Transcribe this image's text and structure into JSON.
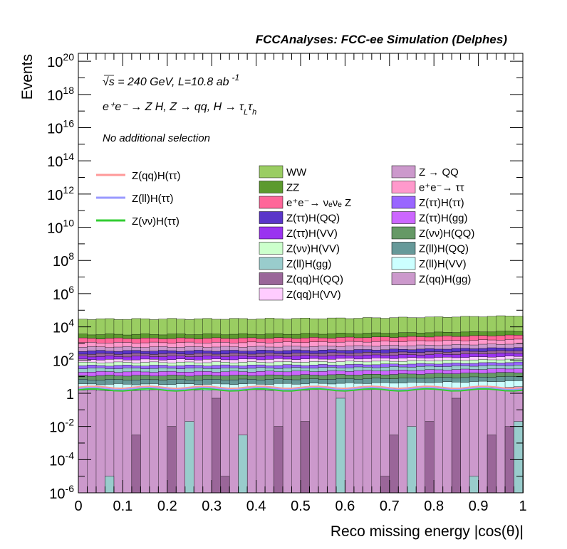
{
  "chart_data": {
    "type": "bar",
    "stacked": true,
    "log_scale_y": true,
    "title": "FCCAnalyses: FCC-ee Simulation (Delphes)",
    "ylabel": "Events",
    "xlabel": "Reco missing energy |cos(θ)|",
    "xlim": [
      0,
      1
    ],
    "ylim": [
      1e-06,
      3e+20
    ],
    "x_ticks": [
      "0",
      "0.1",
      "0.2",
      "0.3",
      "0.4",
      "0.5",
      "0.6",
      "0.7",
      "0.8",
      "0.9",
      "1"
    ],
    "y_ticks": [
      {
        "base": "10",
        "exp": "-6"
      },
      {
        "base": "10",
        "exp": "-4"
      },
      {
        "base": "10",
        "exp": "-2"
      },
      {
        "base": "1",
        "exp": ""
      },
      {
        "base": "10",
        "exp": "2"
      },
      {
        "base": "10",
        "exp": "4"
      },
      {
        "base": "10",
        "exp": "6"
      },
      {
        "base": "10",
        "exp": "8"
      },
      {
        "base": "10",
        "exp": "10"
      },
      {
        "base": "10",
        "exp": "12"
      },
      {
        "base": "10",
        "exp": "14"
      },
      {
        "base": "10",
        "exp": "16"
      },
      {
        "base": "10",
        "exp": "18"
      },
      {
        "base": "10",
        "exp": "20"
      }
    ],
    "annotations": {
      "energy_pre": "√s = 240 GeV, L=10.8 ab",
      "energy_sup": "-1",
      "process": "e⁺e⁻ → Z H, Z  → qq, H  → τ",
      "process_sub1": "L",
      "process_mid": "τ",
      "process_sub2": "h",
      "selection": "No additional selection"
    },
    "n_bins": 50,
    "signal_series": [
      {
        "name": "Z(qq)H(ττ)",
        "color": "#ff9999",
        "level": 2.3
      },
      {
        "name": "Z(ll)H(ττ)",
        "color": "#9999ff",
        "level": 1.9
      },
      {
        "name": "Z(νν)H(ττ)",
        "color": "#33cc33",
        "level": 1.6
      }
    ],
    "background_series": [
      {
        "name": "WW",
        "color": "#9acd62",
        "level": 26000
      },
      {
        "name": "ZZ",
        "color": "#5c9a2e",
        "level": 1500
      },
      {
        "name": "e⁺e⁻→ νₑνₑ Z",
        "color": "#ff6699",
        "level": 900
      },
      {
        "name": "Z(ττ)H(QQ)",
        "color": "#5a35c9",
        "level": 120
      },
      {
        "name": "Z(ττ)H(VV)",
        "color": "#9a33f0",
        "level": 60
      },
      {
        "name": "Z(νν)H(VV)",
        "color": "#ccffcc",
        "level": 25
      },
      {
        "name": "Z(ll)H(gg)",
        "color": "#99cccc",
        "level": 12
      },
      {
        "name": "Z(qq)H(QQ)",
        "color": "#9a6699",
        "level": 70
      },
      {
        "name": "Z(qq)H(VV)",
        "color": "#ffccff",
        "level": 35
      },
      {
        "name": "Z → QQ",
        "color": "#cc99cc",
        "level": 250
      },
      {
        "name": "e⁺e⁻→ ττ",
        "color": "#ff99cc",
        "level": 500
      },
      {
        "name": "Z(ττ)H(ττ)",
        "color": "#9966ff",
        "level": 15
      },
      {
        "name": "Z(ττ)H(gg)",
        "color": "#cc66ff",
        "level": 8
      },
      {
        "name": "Z(νν)H(QQ)",
        "color": "#669966",
        "level": 5
      },
      {
        "name": "Z(ll)H(QQ)",
        "color": "#669999",
        "level": 3
      },
      {
        "name": "Z(ll)H(VV)",
        "color": "#ccffff",
        "level": 2
      },
      {
        "name": "Z(qq)H(gg)",
        "color": "#cc99cc",
        "level": 1.5
      }
    ]
  }
}
